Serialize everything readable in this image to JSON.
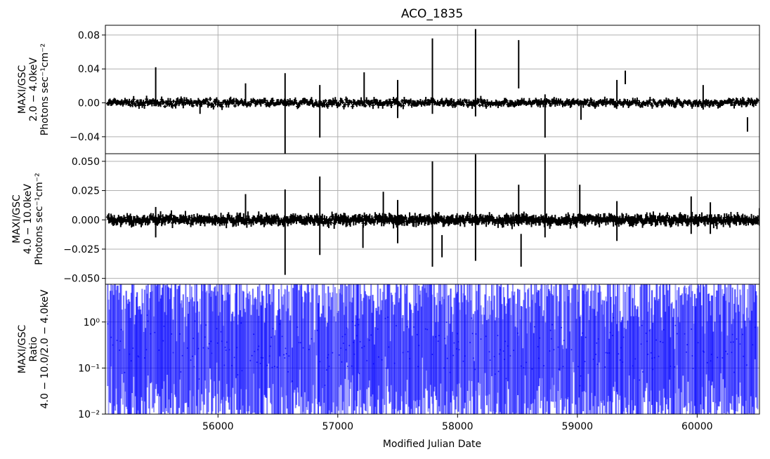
{
  "chart_data": {
    "type": "line",
    "title": "ACO_1835",
    "xlabel": "Modified Julian Date",
    "xlim": [
      55060,
      60520
    ],
    "x_ticks": [
      "56000",
      "57000",
      "58000",
      "59000",
      "60000"
    ],
    "grid": true,
    "panels": [
      {
        "name": "low-band",
        "ylabel_lines": [
          "MAXI/GSC",
          "2.0 − 4.0keV",
          "Photons sec⁻¹cm⁻²"
        ],
        "ylim": [
          -0.06,
          0.0915
        ],
        "y_ticks": [
          "−0.04",
          "0.00",
          "0.04",
          "0.08"
        ],
        "y_tick_values": [
          -0.04,
          0.0,
          0.04,
          0.08
        ],
        "color": "#000000",
        "spikes": [
          {
            "x": 55480,
            "y": 0.015,
            "lo": -0.004,
            "hi": 0.042
          },
          {
            "x": 55850,
            "y": -0.005,
            "lo": -0.013,
            "hi": 0.003
          },
          {
            "x": 56230,
            "y": 0.01,
            "lo": -0.002,
            "hi": 0.023
          },
          {
            "x": 56560,
            "y": -0.01,
            "lo": -0.06,
            "hi": 0.035
          },
          {
            "x": 56850,
            "y": -0.01,
            "lo": -0.041,
            "hi": 0.021
          },
          {
            "x": 57220,
            "y": 0.01,
            "lo": -0.005,
            "hi": 0.036
          },
          {
            "x": 57500,
            "y": 0.0,
            "lo": -0.018,
            "hi": 0.027
          },
          {
            "x": 57790,
            "y": 0.03,
            "lo": -0.013,
            "hi": 0.076
          },
          {
            "x": 58150,
            "y": 0.035,
            "lo": -0.016,
            "hi": 0.087
          },
          {
            "x": 58510,
            "y": 0.045,
            "lo": 0.017,
            "hi": 0.074
          },
          {
            "x": 58730,
            "y": -0.015,
            "lo": -0.041,
            "hi": 0.01
          },
          {
            "x": 59030,
            "y": -0.01,
            "lo": -0.02,
            "hi": 0.0
          },
          {
            "x": 59330,
            "y": 0.015,
            "lo": 0.002,
            "hi": 0.027
          },
          {
            "x": 59400,
            "y": 0.03,
            "lo": 0.022,
            "hi": 0.038
          },
          {
            "x": 60050,
            "y": 0.005,
            "lo": -0.008,
            "hi": 0.021
          },
          {
            "x": 60420,
            "y": -0.026,
            "lo": -0.034,
            "hi": -0.017
          }
        ]
      },
      {
        "name": "high-band",
        "ylabel_lines": [
          "MAXI/GSC",
          "4.0 − 10.0keV",
          "Photons sec⁻¹cm⁻²"
        ],
        "ylim": [
          -0.055,
          0.0565
        ],
        "y_ticks": [
          "−0.050",
          "−0.025",
          "0.000",
          "0.025",
          "0.050"
        ],
        "y_tick_values": [
          -0.05,
          -0.025,
          0.0,
          0.025,
          0.05
        ],
        "color": "#000000",
        "spikes": [
          {
            "x": 55480,
            "y": 0.0,
            "lo": -0.015,
            "hi": 0.011
          },
          {
            "x": 56230,
            "y": 0.01,
            "lo": -0.002,
            "hi": 0.022
          },
          {
            "x": 56560,
            "y": -0.01,
            "lo": -0.047,
            "hi": 0.026
          },
          {
            "x": 56850,
            "y": 0.004,
            "lo": -0.03,
            "hi": 0.037
          },
          {
            "x": 57210,
            "y": -0.014,
            "lo": -0.024,
            "hi": -0.004
          },
          {
            "x": 57380,
            "y": 0.01,
            "lo": -0.003,
            "hi": 0.024
          },
          {
            "x": 57500,
            "y": -0.002,
            "lo": -0.02,
            "hi": 0.017
          },
          {
            "x": 57790,
            "y": 0.005,
            "lo": -0.04,
            "hi": 0.05
          },
          {
            "x": 57870,
            "y": -0.023,
            "lo": -0.032,
            "hi": -0.013
          },
          {
            "x": 58150,
            "y": 0.012,
            "lo": -0.035,
            "hi": 0.056
          },
          {
            "x": 58510,
            "y": 0.016,
            "lo": 0.003,
            "hi": 0.03
          },
          {
            "x": 58530,
            "y": -0.026,
            "lo": -0.04,
            "hi": -0.012
          },
          {
            "x": 58730,
            "y": 0.02,
            "lo": -0.015,
            "hi": 0.056
          },
          {
            "x": 59020,
            "y": 0.015,
            "lo": 0.0,
            "hi": 0.03
          },
          {
            "x": 59330,
            "y": 0.0,
            "lo": -0.018,
            "hi": 0.016
          },
          {
            "x": 59950,
            "y": 0.0,
            "lo": -0.012,
            "hi": 0.02
          },
          {
            "x": 60110,
            "y": 0.0,
            "lo": -0.012,
            "hi": 0.015
          },
          {
            "x": 60520,
            "y": 0.0,
            "lo": -0.005,
            "hi": 0.01
          }
        ]
      },
      {
        "name": "ratio",
        "ylabel_lines": [
          "MAXI/GSC",
          "Ratio",
          "4.0 − 10.0/2.0 − 4.0keV"
        ],
        "yscale": "log",
        "ylim": [
          0.01,
          6.6
        ],
        "y_ticks": [
          "10⁻²",
          "10⁻¹",
          "10⁰"
        ],
        "y_tick_values": [
          0.01,
          0.1,
          1.0
        ],
        "color": "#0000ff"
      }
    ]
  }
}
